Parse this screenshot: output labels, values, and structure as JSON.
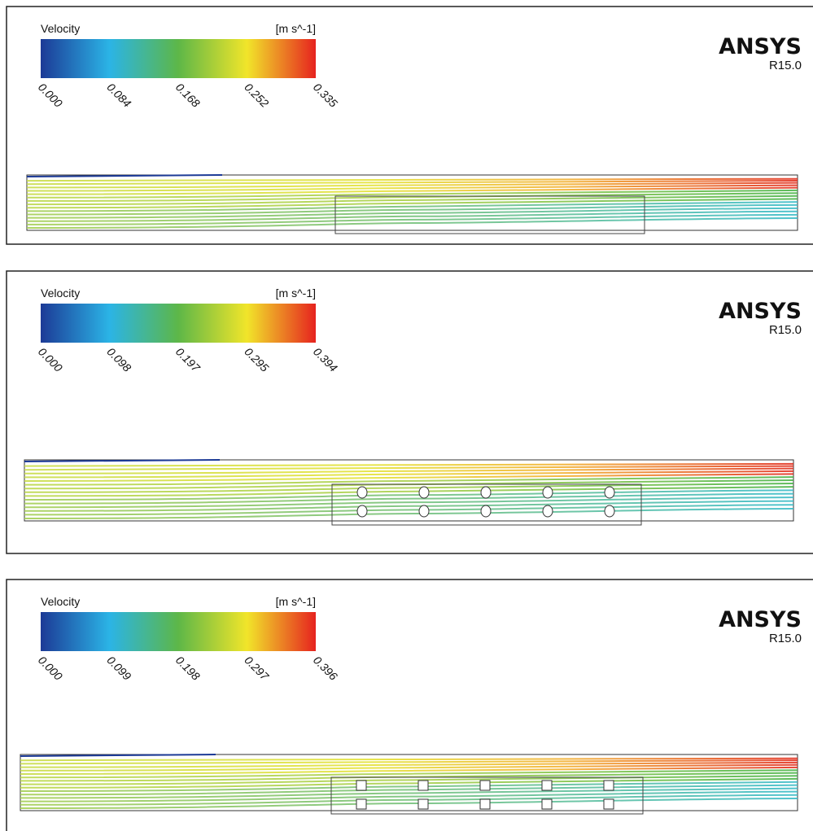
{
  "panels": [
    {
      "legend_title": "Velocity",
      "unit": "[m s^-1]",
      "ticks": [
        "0.000",
        "0.084",
        "0.168",
        "0.252",
        "0.335"
      ],
      "brand": "ANSYS",
      "version": "R15.0"
    },
    {
      "legend_title": "Velocity",
      "unit": "[m s^-1]",
      "ticks": [
        "0.000",
        "0.098",
        "0.197",
        "0.295",
        "0.394"
      ],
      "brand": "ANSYS",
      "version": "R15.0"
    },
    {
      "legend_title": "Velocity",
      "unit": "[m s^-1]",
      "ticks": [
        "0.000",
        "0.099",
        "0.198",
        "0.297",
        "0.396"
      ],
      "brand": "ANSYS",
      "version": "R15.0"
    }
  ]
}
